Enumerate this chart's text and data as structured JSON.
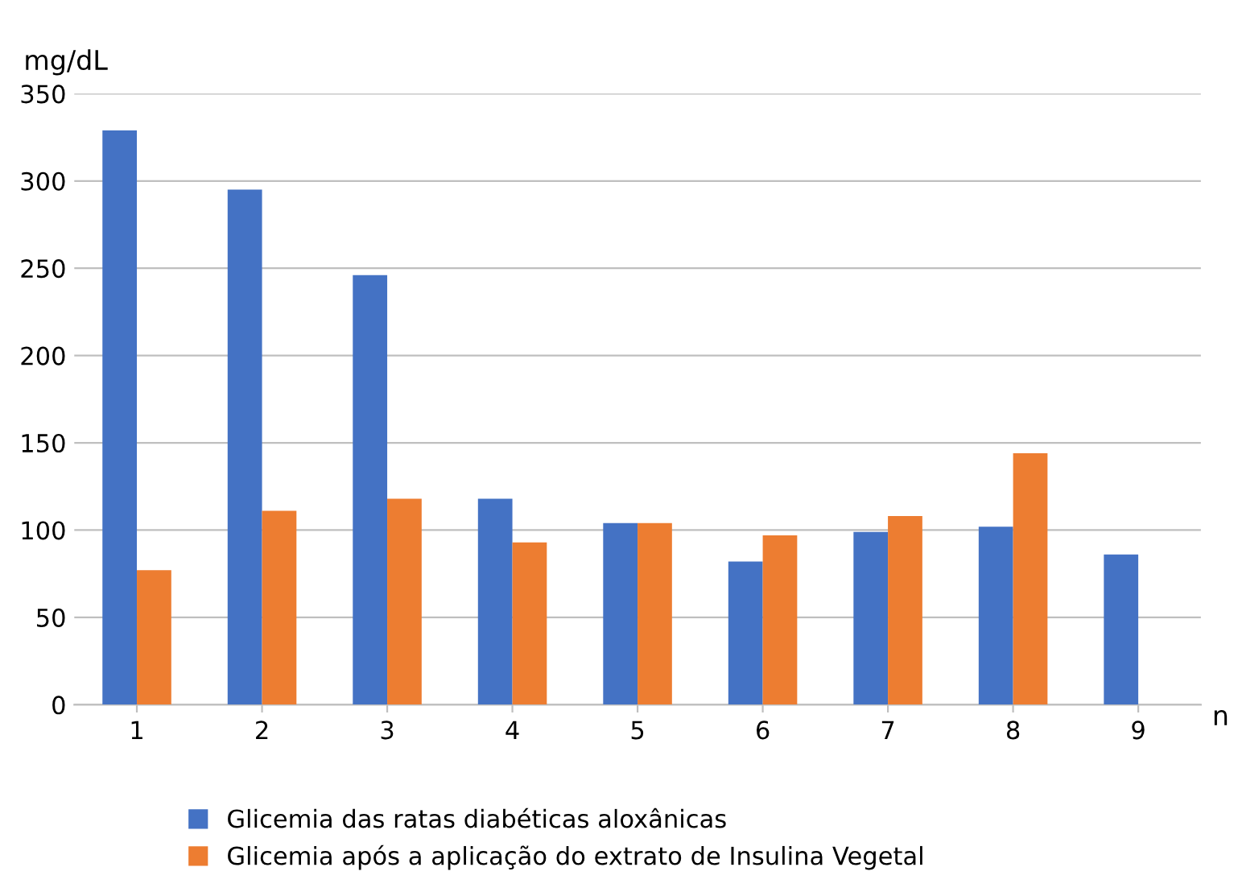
{
  "chart_data": {
    "type": "bar",
    "ylabel": "mg/dL",
    "xlabel": "n",
    "categories": [
      "1",
      "2",
      "3",
      "4",
      "5",
      "6",
      "7",
      "8",
      "9"
    ],
    "series": [
      {
        "name": "Glicemia das ratas diabéticas aloxânicas",
        "color": "#4472c4",
        "values": [
          329,
          295,
          246,
          118,
          104,
          82,
          99,
          102,
          86
        ]
      },
      {
        "name": "Glicemia após a aplicação do extrato de Insulina Vegetal",
        "color": "#ed7d31",
        "values": [
          77,
          111,
          118,
          93,
          104,
          97,
          108,
          144,
          null
        ]
      }
    ],
    "ylim": [
      0,
      350
    ],
    "yticks": [
      0,
      50,
      100,
      150,
      200,
      250,
      300,
      350
    ],
    "grid": "y",
    "legend": "bottom"
  }
}
